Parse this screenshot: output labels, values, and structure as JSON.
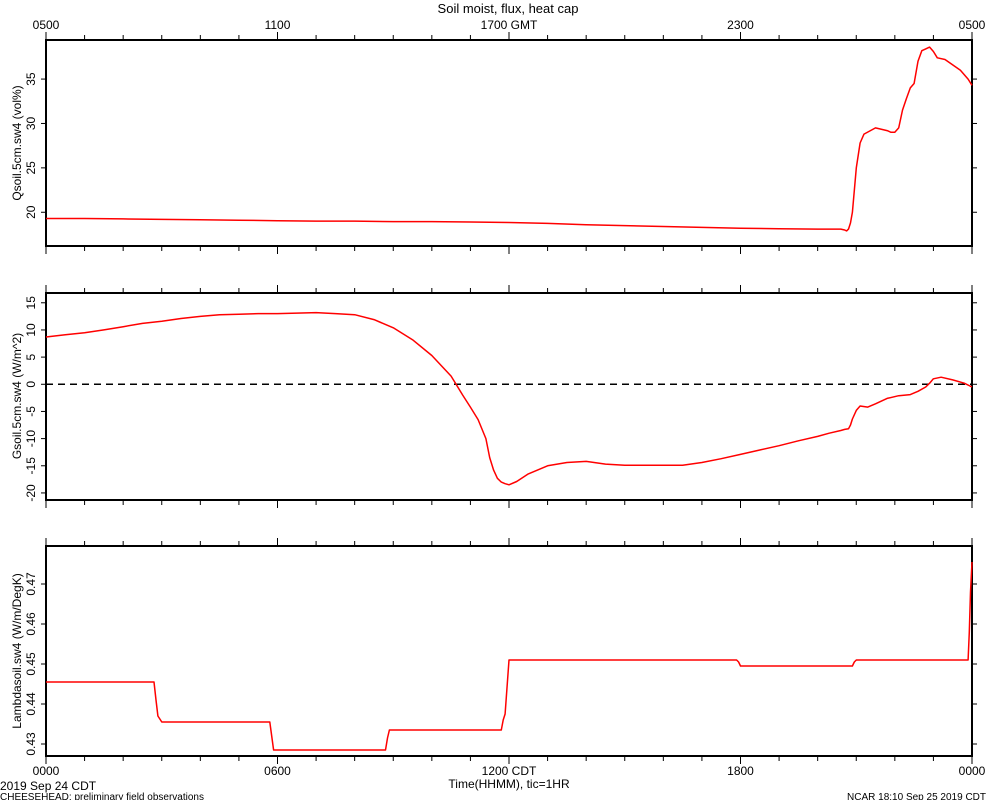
{
  "title": "Soil moist, flux, heat cap",
  "top_axis": {
    "ticks": [
      "0500",
      "1100",
      "1700 GMT",
      "2300",
      "0500"
    ]
  },
  "bottom_axis": {
    "ticks": [
      "0000",
      "0600",
      "1200 CDT",
      "1800",
      "0000"
    ],
    "xlabel": "Time(HHMM), tic=1HR"
  },
  "footer": {
    "date_left": "2019 Sep 24 CDT",
    "project": "CHEESEHEAD: preliminary field observations",
    "stamp": "NCAR 18:10 Sep 25 2019 CDT"
  },
  "colors": {
    "series": "#ff0000",
    "zero_line": "#000000"
  },
  "chart_data": [
    {
      "type": "line",
      "ylabel": "Qsoil.5cm.sw4 (vol%)",
      "xlim": [
        0,
        24
      ],
      "ylim": [
        16.2,
        39.4
      ],
      "yticks": [
        20,
        25,
        30,
        35
      ],
      "x": [
        0,
        1,
        2,
        3,
        4,
        5,
        6,
        7,
        8,
        9,
        10,
        11,
        12,
        13,
        14,
        15,
        16,
        17,
        18,
        19,
        20,
        20.6,
        20.7,
        20.75,
        20.8,
        20.85,
        20.9,
        21.0,
        21.1,
        21.2,
        21.5,
        21.8,
        21.9,
        22.0,
        22.1,
        22.2,
        22.3,
        22.4,
        22.5,
        22.6,
        22.7,
        22.8,
        22.9,
        23.0,
        23.1,
        23.3,
        23.5,
        23.7,
        23.9,
        24.0
      ],
      "values": [
        19.3,
        19.3,
        19.25,
        19.2,
        19.15,
        19.1,
        19.05,
        19.0,
        19.0,
        18.95,
        18.95,
        18.9,
        18.85,
        18.75,
        18.6,
        18.5,
        18.4,
        18.3,
        18.2,
        18.15,
        18.1,
        18.1,
        18.0,
        17.9,
        18.1,
        18.8,
        20.0,
        25.0,
        27.8,
        28.8,
        29.5,
        29.2,
        29.0,
        29.0,
        29.5,
        31.5,
        32.8,
        34.0,
        34.5,
        37.0,
        38.2,
        38.4,
        38.6,
        38.1,
        37.4,
        37.2,
        36.6,
        36.0,
        35.0,
        34.3
      ]
    },
    {
      "type": "line",
      "ylabel": "Gsoil.5cm.sw4 (W/m^2)",
      "xlim": [
        0,
        24
      ],
      "ylim": [
        -21.3,
        16.8
      ],
      "yticks": [
        -20,
        -15,
        -10,
        -5,
        0,
        5,
        10,
        15
      ],
      "reference_line": 0,
      "x": [
        0,
        0.5,
        1,
        1.5,
        2,
        2.5,
        3,
        3.5,
        4,
        4.5,
        5,
        5.5,
        6,
        6.5,
        7,
        7.5,
        8,
        8.5,
        9,
        9.5,
        10,
        10.5,
        10.8,
        11.0,
        11.2,
        11.4,
        11.5,
        11.6,
        11.7,
        11.8,
        11.9,
        12.0,
        12.2,
        12.5,
        13.0,
        13.5,
        14.0,
        14.5,
        15.0,
        15.5,
        16.0,
        16.5,
        17.0,
        17.5,
        18.0,
        18.5,
        19.0,
        19.5,
        20.0,
        20.3,
        20.6,
        20.7,
        20.8,
        20.85,
        20.9,
        21.0,
        21.1,
        21.3,
        21.5,
        21.8,
        22.1,
        22.4,
        22.6,
        22.8,
        22.9,
        23.0,
        23.2,
        23.5,
        23.8,
        24.0
      ],
      "values": [
        8.7,
        9.1,
        9.5,
        10.0,
        10.6,
        11.2,
        11.6,
        12.1,
        12.5,
        12.8,
        12.9,
        13.0,
        13.0,
        13.1,
        13.2,
        13.0,
        12.8,
        11.9,
        10.4,
        8.2,
        5.3,
        1.5,
        -2.0,
        -4.2,
        -6.5,
        -10.0,
        -13.5,
        -15.8,
        -17.3,
        -18.0,
        -18.3,
        -18.5,
        -17.9,
        -16.5,
        -15.0,
        -14.4,
        -14.2,
        -14.7,
        -14.9,
        -14.9,
        -14.9,
        -14.9,
        -14.4,
        -13.7,
        -12.9,
        -12.1,
        -11.3,
        -10.4,
        -9.6,
        -9.0,
        -8.5,
        -8.3,
        -8.2,
        -7.5,
        -6.4,
        -4.8,
        -4.0,
        -4.2,
        -3.6,
        -2.6,
        -2.1,
        -1.9,
        -1.3,
        -0.5,
        0.2,
        1.0,
        1.3,
        0.8,
        0.2,
        -0.5
      ]
    },
    {
      "type": "line",
      "ylabel": "Lambdasoil.sw4 (W/m/DegK)",
      "xlim": [
        0,
        24
      ],
      "ylim": [
        0.427,
        0.4795
      ],
      "yticks": [
        0.43,
        0.44,
        0.45,
        0.46,
        0.47
      ],
      "x": [
        0,
        2.8,
        2.85,
        2.9,
        3.0,
        5.8,
        5.85,
        5.9,
        6.0,
        8.8,
        8.85,
        8.9,
        9.0,
        11.8,
        11.85,
        11.9,
        12.0,
        17.9,
        17.95,
        18.0,
        18.1,
        20.9,
        20.95,
        21.0,
        21.1,
        23.9,
        23.93,
        23.96,
        24.0
      ],
      "values": [
        0.4455,
        0.4455,
        0.441,
        0.437,
        0.4355,
        0.4355,
        0.432,
        0.4285,
        0.4285,
        0.4285,
        0.4315,
        0.4335,
        0.4335,
        0.4335,
        0.436,
        0.4375,
        0.451,
        0.451,
        0.4505,
        0.4495,
        0.4495,
        0.4495,
        0.4505,
        0.451,
        0.451,
        0.451,
        0.458,
        0.468,
        0.4755
      ]
    }
  ]
}
